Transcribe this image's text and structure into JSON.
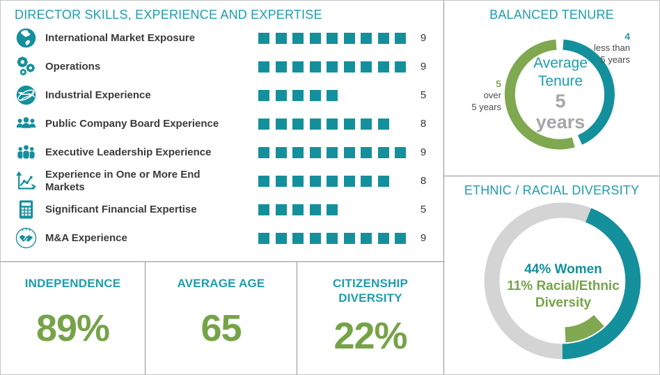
{
  "skills_panel": {
    "title": "DIRECTOR SKILLS, EXPERIENCE AND EXPERTISE"
  },
  "stats": [
    {
      "label": "INDEPENDENCE",
      "value": "89%"
    },
    {
      "label": "AVERAGE AGE",
      "value": "65"
    },
    {
      "label": "CITIZENSHIP DIVERSITY",
      "value": "22%"
    }
  ],
  "tenure_panel": {
    "title": "BALANCED TENURE",
    "center": [
      "Average",
      "Tenure",
      "5",
      "years"
    ],
    "labels": {
      "less": {
        "count": "4",
        "line1": "less than",
        "line2": "5 years"
      },
      "over": {
        "count": "5",
        "line1": "over",
        "line2": "5 years"
      }
    }
  },
  "diversity_panel": {
    "title": "ETHNIC / RACIAL DIVERSITY",
    "center_lines": [
      "44% Women",
      "11% Racial/Ethnic",
      "Diversity"
    ]
  },
  "colors": {
    "teal": "#14909c",
    "teal_title": "#1d9dac",
    "green": "#76a348",
    "green_light": "#7fa851",
    "gray_ring": "#d4d4d4",
    "gray_text": "#a6a6a8",
    "text_dark": "#3b3b3b",
    "border": "#8f8f8f"
  },
  "chart_data": [
    {
      "id": "skills",
      "type": "bar",
      "style": "square-pictogram",
      "title": "DIRECTOR SKILLS, EXPERIENCE AND EXPERTISE",
      "categories": [
        "International Market Exposure",
        "Operations",
        "Industrial Experience",
        "Public Company Board Experience",
        "Executive Leadership Experience",
        "Experience in One or More End\nMarkets",
        "Significant Financial Expertise",
        "M&A Experience"
      ],
      "values": [
        9,
        9,
        5,
        8,
        9,
        8,
        5,
        9
      ],
      "icons": [
        "globe-icon",
        "gears-icon",
        "network-globe-icon",
        "board-people-icon",
        "leadership-people-icon",
        "trend-chart-icon",
        "calculator-icon",
        "handshake-icon"
      ],
      "xlim": [
        0,
        9
      ],
      "unit": "directors"
    },
    {
      "id": "tenure",
      "type": "pie",
      "variant": "donut",
      "title": "BALANCED TENURE",
      "center_label": "Average Tenure 5 years",
      "segments": [
        {
          "label": "less than 5 years",
          "value": 4,
          "color": "#14909c"
        },
        {
          "label": "over 5 years",
          "value": 5,
          "color": "#7fa851"
        }
      ]
    },
    {
      "id": "diversity",
      "type": "pie",
      "variant": "donut",
      "title": "ETHNIC / RACIAL DIVERSITY",
      "unit": "%",
      "segments": [
        {
          "label": "Women",
          "value": 44,
          "color": "#14909c"
        },
        {
          "label": "Racial/Ethnic Diversity",
          "value": 11,
          "color": "#7fa851"
        },
        {
          "label": "Remainder",
          "value": 56,
          "color": "#d4d4d4"
        }
      ],
      "annotations": [
        "44% Women",
        "11% Racial/Ethnic Diversity"
      ]
    }
  ]
}
